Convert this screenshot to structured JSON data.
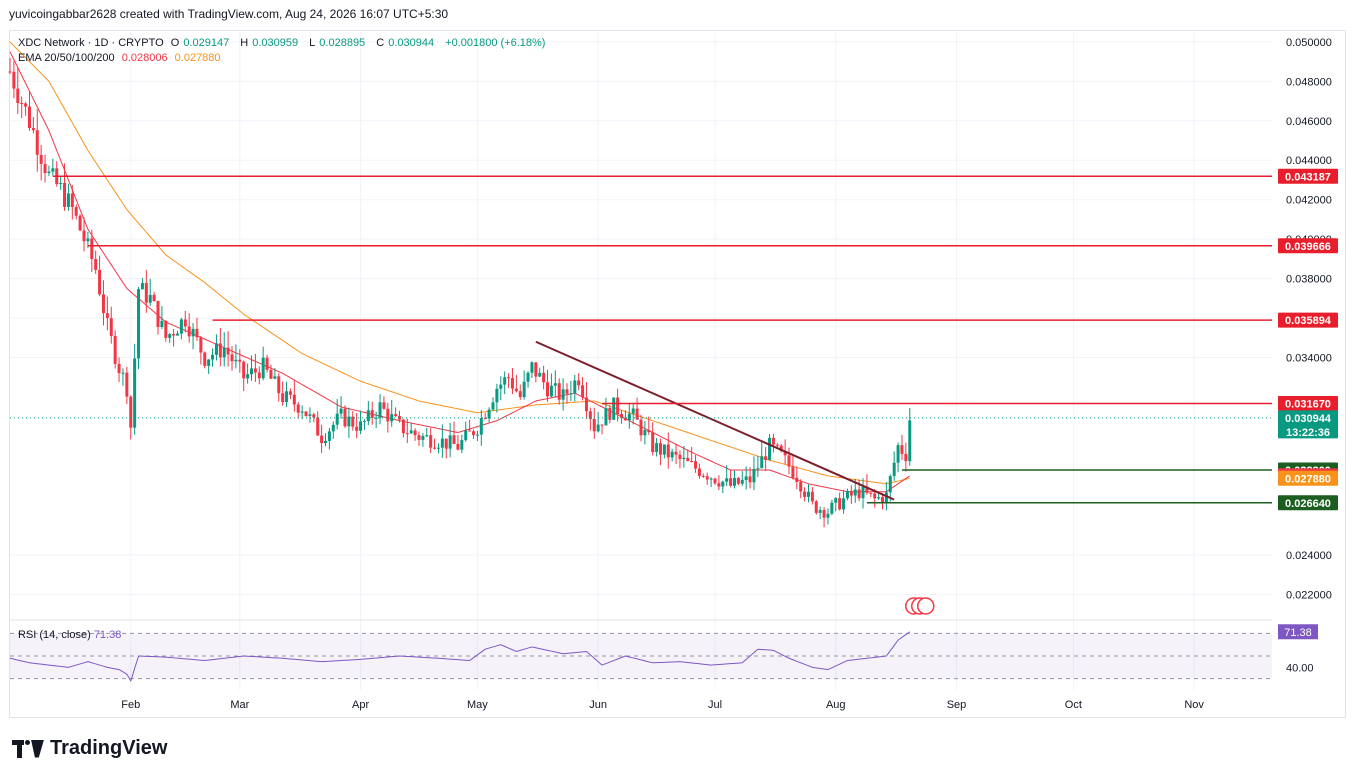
{
  "header": {
    "caption": "yuvicoingabbar2628 created with TradingView.com, Aug 24, 2026 16:07 UTC+5:30"
  },
  "legend": {
    "symbol": "XDC Network · 1D · CRYPTO",
    "o_label": "O",
    "o": "0.029147",
    "h_label": "H",
    "h": "0.030959",
    "l_label": "L",
    "l": "0.028895",
    "c_label": "C",
    "c": "0.030944",
    "change": "+0.001800 (+6.18%)",
    "ema_label": "EMA 20/50/100/200",
    "ema20": "0.028006",
    "ema50": "0.027880"
  },
  "rsi_legend": {
    "label": "RSI (14, close)",
    "value": "71.38"
  },
  "footer": {
    "brand": "TradingView"
  },
  "colors": {
    "up": "#089981",
    "down": "#f23645",
    "ema20": "#f23645",
    "ema50": "#f7931a",
    "resistance": "#e91e2c",
    "support": "#1b5e20",
    "trendline": "#7b1f2a",
    "rsi": "#7e57c2"
  },
  "chart_data": {
    "type": "candlestick",
    "symbol": "XDC Network",
    "interval": "1D",
    "ylim": [
      0.0208,
      0.0505
    ],
    "y_ticks": [
      "0.050000",
      "0.048000",
      "0.046000",
      "0.044000",
      "0.042000",
      "0.040000",
      "0.038000",
      "0.036000",
      "0.034000",
      "0.024000",
      "0.022000"
    ],
    "x_ticks": [
      "Feb",
      "Mar",
      "Apr",
      "May",
      "Jun",
      "Jul",
      "Aug",
      "Sep",
      "Oct",
      "Nov"
    ],
    "x_tick_days": [
      31,
      59,
      90,
      120,
      151,
      181,
      212,
      243,
      273,
      304
    ],
    "x_range_days": [
      0,
      324
    ],
    "horizontal_levels": [
      {
        "value": 0.043187,
        "label": "0.043187",
        "kind": "resistance",
        "start_day": 11
      },
      {
        "value": 0.039666,
        "label": "0.039666",
        "kind": "resistance",
        "start_day": 20
      },
      {
        "value": 0.035894,
        "label": "0.035894",
        "kind": "resistance",
        "start_day": 52
      },
      {
        "value": 0.03167,
        "label": "0.031670",
        "kind": "resistance",
        "start_day": 152
      },
      {
        "value": 0.0283,
        "label": "0.028300",
        "kind": "support",
        "start_day": 229
      },
      {
        "value": 0.02664,
        "label": "0.026640",
        "kind": "support",
        "start_day": 220
      }
    ],
    "price_tags": [
      {
        "value": 0.030944,
        "label": "0.030944",
        "countdown": "13:22:36",
        "kind": "last"
      },
      {
        "value": 0.028006,
        "label": "0.028006",
        "kind": "ema20"
      },
      {
        "value": 0.02788,
        "label": "0.027880",
        "kind": "ema50"
      }
    ],
    "trendline": {
      "from": {
        "day": 135,
        "value": 0.0348
      },
      "to": {
        "day": 227,
        "value": 0.0268
      }
    },
    "close_path": [
      [
        0,
        0.0485
      ],
      [
        5,
        0.046
      ],
      [
        10,
        0.0432
      ],
      [
        13,
        0.0425
      ],
      [
        16,
        0.0415
      ],
      [
        20,
        0.0395
      ],
      [
        22,
        0.0385
      ],
      [
        25,
        0.0355
      ],
      [
        28,
        0.0335
      ],
      [
        30,
        0.0325
      ],
      [
        31,
        0.0305
      ],
      [
        33,
        0.0375
      ],
      [
        36,
        0.037
      ],
      [
        40,
        0.035
      ],
      [
        45,
        0.036
      ],
      [
        50,
        0.034
      ],
      [
        55,
        0.0345
      ],
      [
        60,
        0.033
      ],
      [
        65,
        0.0335
      ],
      [
        70,
        0.032
      ],
      [
        75,
        0.0315
      ],
      [
        80,
        0.03
      ],
      [
        85,
        0.031
      ],
      [
        90,
        0.0305
      ],
      [
        95,
        0.0315
      ],
      [
        100,
        0.0305
      ],
      [
        105,
        0.03
      ],
      [
        110,
        0.0298
      ],
      [
        115,
        0.0295
      ],
      [
        120,
        0.0305
      ],
      [
        125,
        0.0325
      ],
      [
        128,
        0.033
      ],
      [
        131,
        0.032
      ],
      [
        134,
        0.0335
      ],
      [
        138,
        0.0325
      ],
      [
        142,
        0.032
      ],
      [
        146,
        0.033
      ],
      [
        150,
        0.0305
      ],
      [
        155,
        0.0315
      ],
      [
        160,
        0.031
      ],
      [
        165,
        0.0295
      ],
      [
        170,
        0.029
      ],
      [
        175,
        0.0285
      ],
      [
        180,
        0.028
      ],
      [
        185,
        0.0275
      ],
      [
        190,
        0.0278
      ],
      [
        195,
        0.0295
      ],
      [
        198,
        0.029
      ],
      [
        202,
        0.028
      ],
      [
        206,
        0.0265
      ],
      [
        210,
        0.0262
      ],
      [
        214,
        0.0268
      ],
      [
        218,
        0.0272
      ],
      [
        222,
        0.0268
      ],
      [
        225,
        0.027
      ],
      [
        228,
        0.0295
      ],
      [
        230,
        0.0291
      ],
      [
        231,
        0.0309
      ]
    ],
    "ema20_path": [
      [
        0,
        0.0495
      ],
      [
        10,
        0.0455
      ],
      [
        20,
        0.0405
      ],
      [
        30,
        0.0375
      ],
      [
        40,
        0.0358
      ],
      [
        55,
        0.0345
      ],
      [
        70,
        0.0332
      ],
      [
        85,
        0.0315
      ],
      [
        100,
        0.0308
      ],
      [
        115,
        0.0302
      ],
      [
        125,
        0.0308
      ],
      [
        135,
        0.0318
      ],
      [
        145,
        0.0322
      ],
      [
        155,
        0.0312
      ],
      [
        165,
        0.0302
      ],
      [
        175,
        0.0292
      ],
      [
        185,
        0.0283
      ],
      [
        195,
        0.0283
      ],
      [
        205,
        0.0276
      ],
      [
        215,
        0.0272
      ],
      [
        225,
        0.0272
      ],
      [
        231,
        0.028
      ]
    ],
    "ema50_path": [
      [
        0,
        0.05
      ],
      [
        10,
        0.048
      ],
      [
        20,
        0.0445
      ],
      [
        30,
        0.0415
      ],
      [
        40,
        0.0392
      ],
      [
        50,
        0.0378
      ],
      [
        60,
        0.0362
      ],
      [
        75,
        0.0342
      ],
      [
        90,
        0.0328
      ],
      [
        105,
        0.0318
      ],
      [
        120,
        0.0312
      ],
      [
        135,
        0.0316
      ],
      [
        150,
        0.0318
      ],
      [
        165,
        0.0308
      ],
      [
        180,
        0.0298
      ],
      [
        195,
        0.0288
      ],
      [
        210,
        0.028
      ],
      [
        225,
        0.0276
      ],
      [
        231,
        0.02788
      ]
    ],
    "rsi": {
      "ylim": [
        20,
        80
      ],
      "band": [
        30,
        70
      ],
      "tick": "40.00",
      "path": [
        [
          0,
          48
        ],
        [
          5,
          44
        ],
        [
          10,
          42
        ],
        [
          15,
          40
        ],
        [
          20,
          45
        ],
        [
          25,
          40
        ],
        [
          28,
          38
        ],
        [
          30,
          34
        ],
        [
          31,
          28
        ],
        [
          33,
          50
        ],
        [
          40,
          49
        ],
        [
          50,
          46
        ],
        [
          60,
          50
        ],
        [
          70,
          48
        ],
        [
          80,
          45
        ],
        [
          90,
          47
        ],
        [
          100,
          50
        ],
        [
          110,
          48
        ],
        [
          118,
          46
        ],
        [
          122,
          56
        ],
        [
          126,
          60
        ],
        [
          130,
          54
        ],
        [
          134,
          58
        ],
        [
          138,
          55
        ],
        [
          142,
          52
        ],
        [
          148,
          54
        ],
        [
          152,
          42
        ],
        [
          158,
          50
        ],
        [
          165,
          44
        ],
        [
          172,
          45
        ],
        [
          180,
          42
        ],
        [
          188,
          44
        ],
        [
          192,
          56
        ],
        [
          196,
          55
        ],
        [
          200,
          48
        ],
        [
          206,
          40
        ],
        [
          210,
          38
        ],
        [
          215,
          46
        ],
        [
          220,
          48
        ],
        [
          225,
          50
        ],
        [
          228,
          64
        ],
        [
          231,
          71.38
        ]
      ]
    }
  }
}
